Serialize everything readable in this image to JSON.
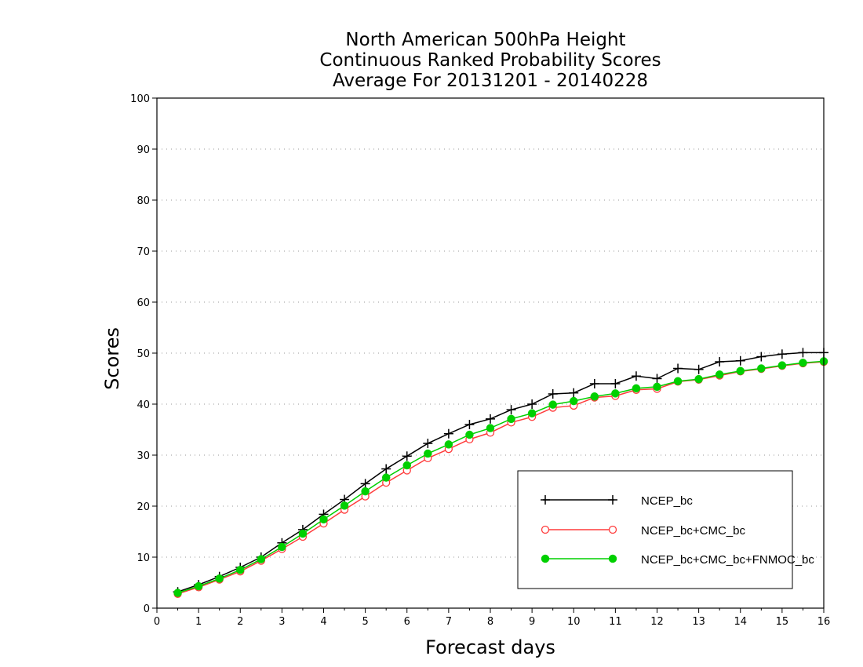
{
  "chart_data": {
    "type": "line",
    "title": [
      "North American 500hPa Height",
      "Continuous Ranked Probability Scores",
      "Average For 20131201 - 20140228"
    ],
    "xlabel": "Forecast days",
    "ylabel": "Scores",
    "xlim": [
      0,
      16
    ],
    "ylim": [
      0,
      100
    ],
    "x_ticks": [
      "0",
      "1",
      "2",
      "3",
      "4",
      "5",
      "6",
      "7",
      "8",
      "9",
      "10",
      "11",
      "12",
      "13",
      "14",
      "15",
      "16"
    ],
    "y_ticks": [
      "0",
      "10",
      "20",
      "30",
      "40",
      "50",
      "60",
      "70",
      "80",
      "90",
      "100"
    ],
    "grid": "horizontal dotted",
    "legend_position": "bottom-right",
    "x": [
      0.5,
      1,
      1.5,
      2,
      2.5,
      3,
      3.5,
      4,
      4.5,
      5,
      5.5,
      6,
      6.5,
      7,
      7.5,
      8,
      8.5,
      9,
      9.5,
      10,
      10.5,
      11,
      11.5,
      12,
      12.5,
      13,
      13.5,
      14,
      14.5,
      15,
      15.5,
      16
    ],
    "series": [
      {
        "name": "NCEP_bc",
        "color": "#000000",
        "marker": "plus",
        "values": [
          3.2,
          4.6,
          6.2,
          8.0,
          10.0,
          12.8,
          15.4,
          18.4,
          21.3,
          24.4,
          27.3,
          29.8,
          32.3,
          34.2,
          36.0,
          37.1,
          38.9,
          40.0,
          42.0,
          42.2,
          44.0,
          44.0,
          45.5,
          45.0,
          47.0,
          46.8,
          48.3,
          48.5,
          49.3,
          49.8,
          50.1,
          50.1
        ]
      },
      {
        "name": "NCEP_bc+CMC_bc",
        "color": "#ff3b3b",
        "marker": "open-circle",
        "values": [
          2.8,
          4.1,
          5.6,
          7.2,
          9.3,
          11.6,
          14.0,
          16.6,
          19.3,
          21.9,
          24.6,
          27.0,
          29.4,
          31.2,
          33.1,
          34.4,
          36.4,
          37.5,
          39.3,
          39.7,
          41.3,
          41.6,
          42.8,
          43.0,
          44.4,
          44.8,
          45.6,
          46.4,
          46.9,
          47.5,
          48.0,
          48.3
        ]
      },
      {
        "name": "NCEP_bc+CMC_bc+FNMOC_bc",
        "color": "#00d000",
        "marker": "filled-circle",
        "values": [
          3.0,
          4.3,
          5.8,
          7.5,
          9.6,
          12.0,
          14.6,
          17.4,
          20.1,
          22.9,
          25.6,
          28.0,
          30.3,
          32.1,
          34.0,
          35.3,
          37.1,
          38.2,
          39.9,
          40.6,
          41.5,
          42.1,
          43.1,
          43.4,
          44.5,
          44.9,
          45.8,
          46.5,
          47.0,
          47.6,
          48.1,
          48.4
        ]
      }
    ]
  }
}
